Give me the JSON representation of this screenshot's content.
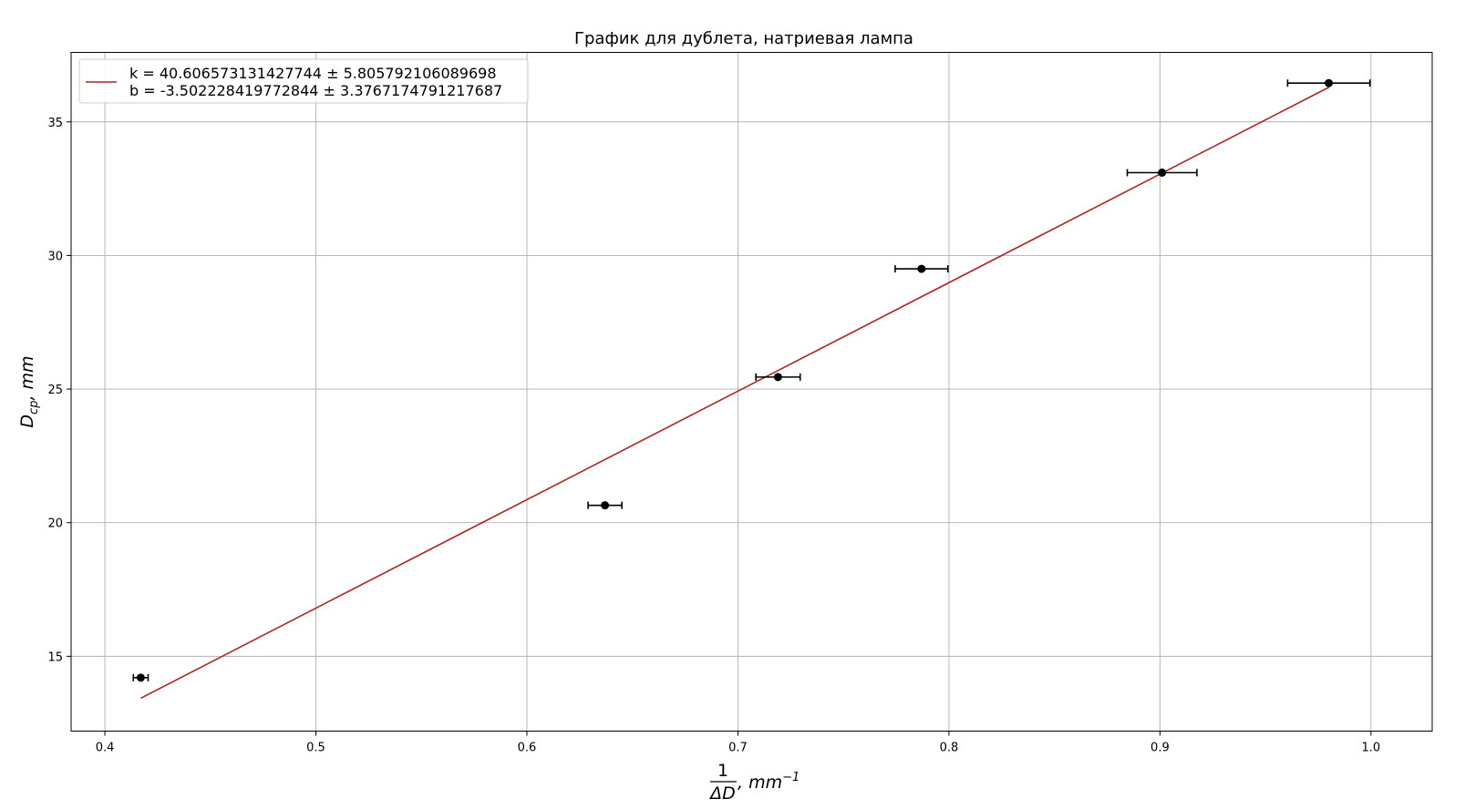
{
  "chart_data": {
    "type": "scatter",
    "title": "График для дублета, натриевая лампа",
    "xlabel": {
      "numerator": "1",
      "denominator": "ΔD",
      "unit_base": ", mm",
      "unit_exp": "−1"
    },
    "ylabel": {
      "base": "D",
      "subscript": "cp",
      "unit": ", mm"
    },
    "xlim": [
      0.384,
      1.029
    ],
    "ylim": [
      12.2,
      37.6
    ],
    "xticks": [
      "0.4",
      "0.5",
      "0.6",
      "0.7",
      "0.8",
      "0.9",
      "1.0"
    ],
    "yticks": [
      "15",
      "20",
      "25",
      "30",
      "35"
    ],
    "grid": true,
    "legend_position": "upper-left",
    "series": [
      {
        "kind": "errorbar",
        "color": "#000000",
        "points": [
          {
            "x": 0.417,
            "y": 14.2,
            "xerr": 0.0035
          },
          {
            "x": 0.637,
            "y": 20.65,
            "xerr": 0.008
          },
          {
            "x": 0.719,
            "y": 25.45,
            "xerr": 0.0105
          },
          {
            "x": 0.787,
            "y": 29.5,
            "xerr": 0.0125
          },
          {
            "x": 0.901,
            "y": 33.1,
            "xerr": 0.0165
          },
          {
            "x": 0.98,
            "y": 36.45,
            "xerr": 0.0195
          }
        ]
      },
      {
        "kind": "fit-line",
        "color": "#b22222",
        "legend": [
          "k = 40.606573131427744 ± 5.805792106089698",
          "b = -3.502228419772844 ± 3.3767174791217687"
        ],
        "k": 40.606573131427744,
        "b": -3.502228419772844,
        "x_range": [
          0.417,
          0.98
        ]
      }
    ]
  }
}
